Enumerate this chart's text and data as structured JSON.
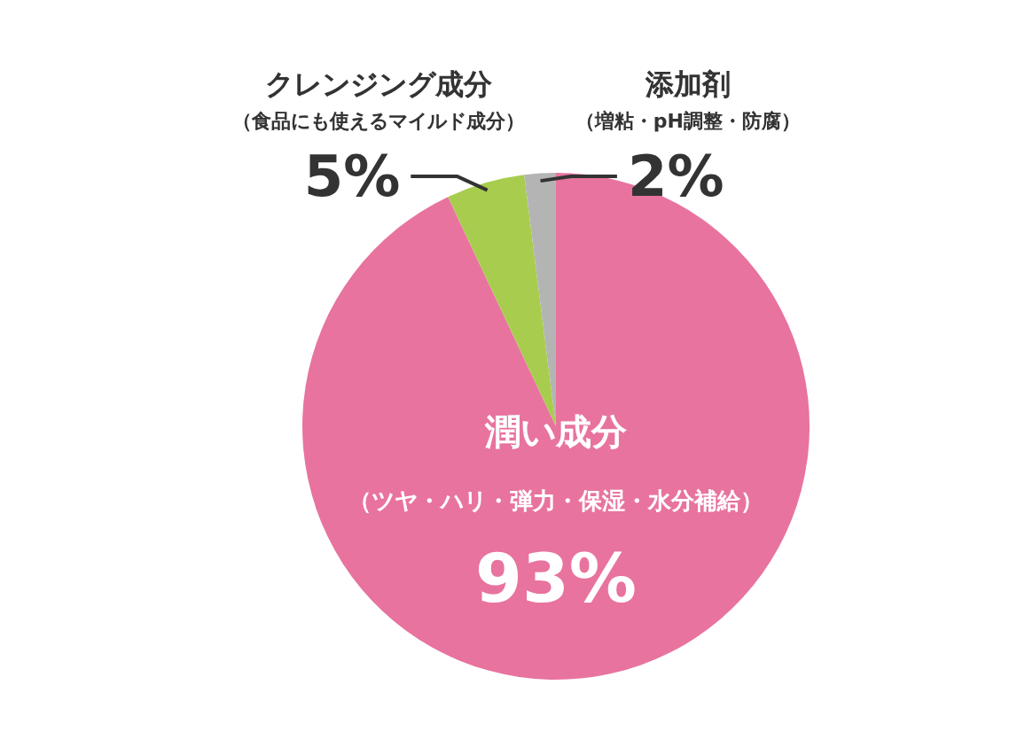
{
  "chart_data": {
    "type": "pie",
    "categories": [
      "潤い成分（ツヤ・ハリ・弾力・保湿・水分補給）",
      "クレンジング成分（食品にも使えるマイルド成分）",
      "添加剤（増粘・pH調整・防腐）"
    ],
    "values": [
      93,
      5,
      2
    ],
    "colors": [
      "#e8739f",
      "#a8cd4e",
      "#b4b4b4"
    ],
    "value_labels": [
      "93%",
      "5%",
      "2%"
    ],
    "legend": false
  }
}
